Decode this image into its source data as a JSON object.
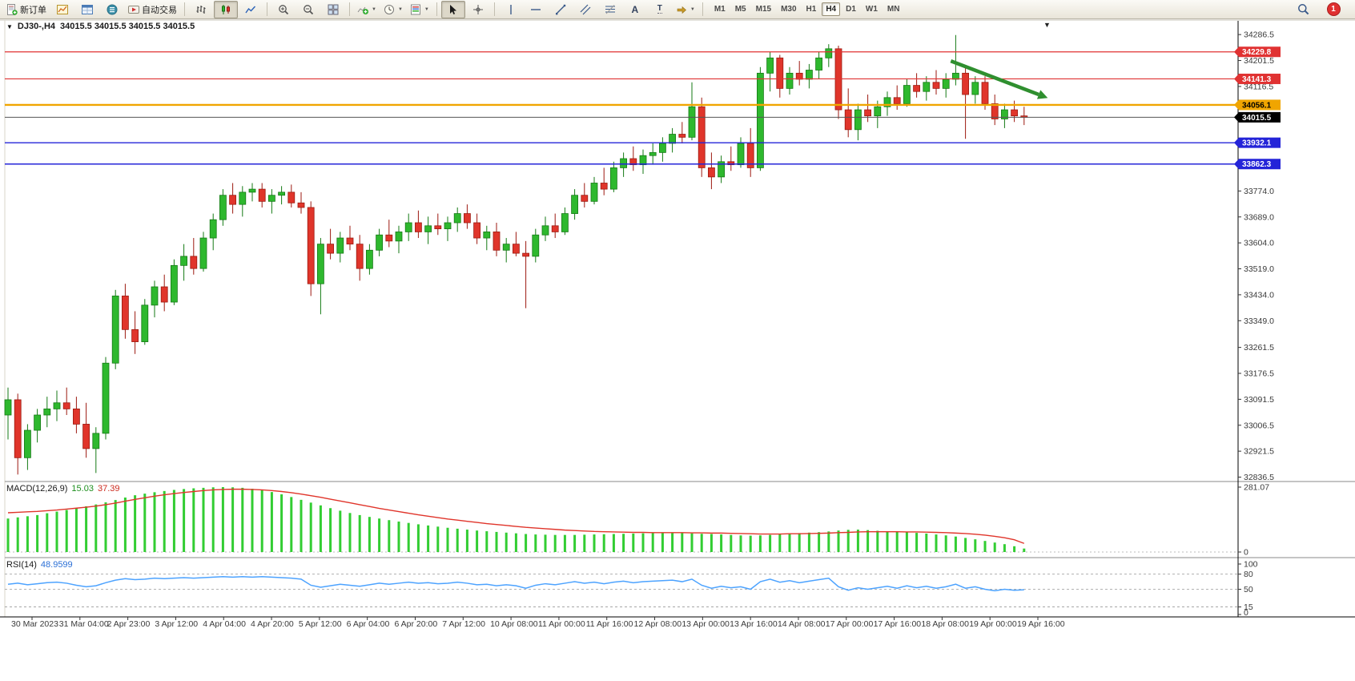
{
  "colors": {
    "bull": "#2eb82e",
    "bull_border": "#157a15",
    "bear": "#e0352b",
    "bear_border": "#9c1a10",
    "macd_histogram": "#32cd32",
    "macd_signal": "#e0352b",
    "rsi_line": "#4da3ff",
    "axis_text": "#3a3a3a",
    "accent_red_line": "#e03232",
    "accent_blue_line": "#2424d8",
    "accent_orange_line": "#f0a500",
    "current_price_line": "#555555",
    "arrow_green": "#2f8f2f"
  },
  "icons": {
    "dropdown_caret": "▼",
    "one_click_toggle": "▼",
    "chart_shift_marker": "▼",
    "text_tool": "A",
    "label_tool": "T"
  },
  "toolbar": {
    "new_order": "新订单",
    "auto_trading": "自动交易",
    "timeframes": [
      "M1",
      "M5",
      "M15",
      "M30",
      "H1",
      "H4",
      "D1",
      "W1",
      "MN"
    ],
    "active_timeframe": "H4",
    "notification_count": "1"
  },
  "chart": {
    "title_symbol": "DJ30-,H4",
    "title_ohlc": "34015.5 34015.5 34015.5 34015.5"
  },
  "panels": {
    "macd": {
      "name": "MACD(12,26,9)",
      "value_main": "15.03",
      "value_signal": "37.39",
      "axis_max": "281.07",
      "axis_min": "0"
    },
    "rsi": {
      "name": "RSI(14)",
      "value": "48.9599",
      "axis_labels": [
        "100",
        "80",
        "50",
        "15",
        "0"
      ],
      "level_lines": [
        80,
        50,
        15
      ]
    }
  },
  "price_axis": {
    "ticks": [
      "34286.5",
      "34201.5",
      "34116.5",
      "33774.0",
      "33689.0",
      "33604.0",
      "33519.0",
      "33434.0",
      "33349.0",
      "33261.5",
      "33176.5",
      "33091.5",
      "33006.5",
      "32921.5",
      "32836.5"
    ]
  },
  "hlines": [
    {
      "price": 34229.8,
      "label": "34229.8",
      "color": "#e03232",
      "width": 1.2,
      "badge_text_color": "#ffffff"
    },
    {
      "price": 34141.3,
      "label": "34141.3",
      "color": "#e03232",
      "width": 1.2,
      "badge_text_color": "#ffffff"
    },
    {
      "price": 34056.1,
      "label": "34056.1",
      "color": "#f0a500",
      "width": 2.4,
      "badge_text_color": "#000000"
    },
    {
      "price": 34015.5,
      "label": "34015.5",
      "color": "#555555",
      "width": 1.0,
      "badge_color": "#000000",
      "badge_text_color": "#ffffff"
    },
    {
      "price": 33932.1,
      "label": "33932.1",
      "color": "#2424d8",
      "width": 1.4,
      "badge_text_color": "#ffffff"
    },
    {
      "price": 33862.3,
      "label": "33862.3",
      "color": "#2424d8",
      "width": 1.4,
      "badge_text_color": "#ffffff"
    }
  ],
  "time_axis": {
    "labels": [
      "30 Mar 2023",
      "31 Mar 04:00",
      "2 Apr 23:00",
      "3 Apr 12:00",
      "4 Apr 04:00",
      "4 Apr 20:00",
      "5 Apr 12:00",
      "6 Apr 04:00",
      "6 Apr 20:00",
      "7 Apr 12:00",
      "10 Apr 08:00",
      "11 Apr 00:00",
      "11 Apr 16:00",
      "12 Apr 08:00",
      "13 Apr 00:00",
      "13 Apr 16:00",
      "14 Apr 08:00",
      "17 Apr 00:00",
      "17 Apr 16:00",
      "18 Apr 08:00",
      "19 Apr 00:00",
      "19 Apr 16:00"
    ]
  },
  "chart_data": {
    "type": "candlestick",
    "symbol": "DJ30-",
    "period": "H4",
    "ylim": [
      32830,
      34300
    ],
    "candles": [
      [
        33040,
        33130,
        32960,
        33090
      ],
      [
        33090,
        33110,
        32845,
        32900
      ],
      [
        32900,
        33010,
        32860,
        32990
      ],
      [
        32990,
        33060,
        32950,
        33040
      ],
      [
        33040,
        33100,
        33000,
        33060
      ],
      [
        33060,
        33120,
        33020,
        33080
      ],
      [
        33080,
        33130,
        33040,
        33060
      ],
      [
        33060,
        33100,
        32980,
        33010
      ],
      [
        33010,
        33080,
        32900,
        32930
      ],
      [
        32930,
        33000,
        32850,
        32980
      ],
      [
        32980,
        33230,
        32960,
        33210
      ],
      [
        33210,
        33450,
        33190,
        33430
      ],
      [
        33430,
        33470,
        33290,
        33320
      ],
      [
        33320,
        33380,
        33240,
        33280
      ],
      [
        33280,
        33420,
        33270,
        33400
      ],
      [
        33400,
        33480,
        33360,
        33460
      ],
      [
        33460,
        33500,
        33380,
        33410
      ],
      [
        33410,
        33550,
        33400,
        33530
      ],
      [
        33530,
        33600,
        33480,
        33560
      ],
      [
        33560,
        33620,
        33500,
        33520
      ],
      [
        33520,
        33640,
        33510,
        33620
      ],
      [
        33620,
        33700,
        33580,
        33680
      ],
      [
        33680,
        33780,
        33660,
        33760
      ],
      [
        33760,
        33800,
        33700,
        33730
      ],
      [
        33730,
        33790,
        33690,
        33770
      ],
      [
        33770,
        33800,
        33740,
        33780
      ],
      [
        33780,
        33800,
        33720,
        33740
      ],
      [
        33740,
        33780,
        33700,
        33760
      ],
      [
        33760,
        33790,
        33730,
        33770
      ],
      [
        33770,
        33795,
        33720,
        33735
      ],
      [
        33735,
        33770,
        33700,
        33720
      ],
      [
        33720,
        33740,
        33430,
        33470
      ],
      [
        33470,
        33620,
        33370,
        33600
      ],
      [
        33600,
        33650,
        33550,
        33570
      ],
      [
        33570,
        33640,
        33540,
        33620
      ],
      [
        33620,
        33660,
        33580,
        33600
      ],
      [
        33600,
        33630,
        33480,
        33520
      ],
      [
        33520,
        33600,
        33500,
        33580
      ],
      [
        33580,
        33650,
        33560,
        33630
      ],
      [
        33630,
        33680,
        33590,
        33610
      ],
      [
        33610,
        33660,
        33570,
        33640
      ],
      [
        33640,
        33700,
        33610,
        33670
      ],
      [
        33670,
        33710,
        33620,
        33640
      ],
      [
        33640,
        33690,
        33600,
        33660
      ],
      [
        33660,
        33700,
        33630,
        33650
      ],
      [
        33650,
        33690,
        33610,
        33670
      ],
      [
        33670,
        33720,
        33640,
        33700
      ],
      [
        33700,
        33730,
        33650,
        33670
      ],
      [
        33670,
        33700,
        33600,
        33620
      ],
      [
        33620,
        33660,
        33580,
        33640
      ],
      [
        33640,
        33670,
        33560,
        33580
      ],
      [
        33580,
        33620,
        33540,
        33600
      ],
      [
        33600,
        33640,
        33560,
        33570
      ],
      [
        33570,
        33610,
        33390,
        33560
      ],
      [
        33560,
        33650,
        33540,
        33630
      ],
      [
        33630,
        33690,
        33610,
        33660
      ],
      [
        33660,
        33700,
        33620,
        33640
      ],
      [
        33640,
        33720,
        33630,
        33700
      ],
      [
        33700,
        33780,
        33680,
        33760
      ],
      [
        33760,
        33800,
        33720,
        33740
      ],
      [
        33740,
        33820,
        33730,
        33800
      ],
      [
        33800,
        33850,
        33760,
        33780
      ],
      [
        33780,
        33870,
        33770,
        33850
      ],
      [
        33850,
        33900,
        33820,
        33880
      ],
      [
        33880,
        33920,
        33840,
        33860
      ],
      [
        33860,
        33910,
        33830,
        33890
      ],
      [
        33890,
        33930,
        33860,
        33900
      ],
      [
        33900,
        33950,
        33870,
        33930
      ],
      [
        33930,
        33980,
        33900,
        33960
      ],
      [
        33960,
        34000,
        33930,
        33950
      ],
      [
        33950,
        34130,
        33940,
        34050
      ],
      [
        34050,
        34080,
        33820,
        33850
      ],
      [
        33850,
        33900,
        33780,
        33820
      ],
      [
        33820,
        33890,
        33800,
        33870
      ],
      [
        33870,
        33920,
        33840,
        33860
      ],
      [
        33860,
        33950,
        33850,
        33930
      ],
      [
        33930,
        33980,
        33820,
        33850
      ],
      [
        33850,
        34180,
        33840,
        34160
      ],
      [
        34160,
        34230,
        34100,
        34210
      ],
      [
        34210,
        34220,
        34080,
        34110
      ],
      [
        34110,
        34180,
        34090,
        34160
      ],
      [
        34160,
        34200,
        34120,
        34140
      ],
      [
        34140,
        34190,
        34110,
        34170
      ],
      [
        34170,
        34230,
        34140,
        34210
      ],
      [
        34210,
        34255,
        34180,
        34240
      ],
      [
        34240,
        34250,
        34010,
        34040
      ],
      [
        34040,
        34110,
        33950,
        33975
      ],
      [
        33975,
        34060,
        33940,
        34040
      ],
      [
        34040,
        34090,
        34000,
        34020
      ],
      [
        34020,
        34070,
        33980,
        34050
      ],
      [
        34050,
        34100,
        34020,
        34080
      ],
      [
        34080,
        34120,
        34040,
        34060
      ],
      [
        34060,
        34140,
        34050,
        34120
      ],
      [
        34120,
        34160,
        34080,
        34100
      ],
      [
        34100,
        34150,
        34070,
        34130
      ],
      [
        34130,
        34170,
        34090,
        34110
      ],
      [
        34110,
        34160,
        34080,
        34140
      ],
      [
        34140,
        34285,
        34120,
        34160
      ],
      [
        34160,
        34180,
        33945,
        34090
      ],
      [
        34090,
        34150,
        34060,
        34130
      ],
      [
        34130,
        34150,
        34040,
        34060
      ],
      [
        34060,
        34090,
        33990,
        34010
      ],
      [
        34010,
        34060,
        33980,
        34040
      ],
      [
        34040,
        34070,
        34000,
        34020
      ],
      [
        34020,
        34050,
        33990,
        34015.5
      ]
    ],
    "macd": {
      "histogram": [
        145,
        150,
        155,
        160,
        168,
        175,
        182,
        190,
        198,
        206,
        215,
        225,
        236,
        246,
        253,
        259,
        264,
        269,
        273,
        276,
        278,
        280,
        281,
        280,
        278,
        274,
        268,
        260,
        250,
        238,
        226,
        214,
        202,
        190,
        179,
        169,
        160,
        152,
        145,
        138,
        132,
        126,
        120,
        115,
        110,
        105,
        101,
        97,
        93,
        90,
        87,
        84,
        81,
        78,
        76,
        75,
        74,
        74,
        74,
        75,
        76,
        77,
        78,
        79,
        80,
        81,
        82,
        83,
        83,
        82,
        81,
        79,
        78,
        76,
        74,
        72,
        71,
        72,
        74,
        77,
        80,
        82,
        84,
        86,
        89,
        93,
        96,
        97,
        95,
        92,
        89,
        87,
        85,
        83,
        80,
        76,
        72,
        67,
        61,
        55,
        48,
        41,
        34,
        25,
        15.03
      ],
      "signal": [
        170,
        172,
        174,
        176,
        179,
        182,
        186,
        190,
        194,
        199,
        205,
        212,
        220,
        228,
        235,
        242,
        248,
        253,
        258,
        262,
        266,
        269,
        271,
        272,
        272,
        271,
        269,
        266,
        262,
        257,
        251,
        244,
        237,
        229,
        221,
        213,
        205,
        197,
        189,
        182,
        175,
        168,
        161,
        155,
        149,
        143,
        138,
        133,
        128,
        123,
        119,
        115,
        111,
        107,
        104,
        101,
        98,
        95,
        93,
        91,
        89,
        88,
        87,
        86,
        85,
        85,
        84,
        84,
        84,
        84,
        83,
        83,
        82,
        82,
        81,
        80,
        79,
        78,
        78,
        78,
        79,
        79,
        80,
        81,
        82,
        84,
        85,
        87,
        88,
        88,
        88,
        88,
        87,
        87,
        86,
        85,
        84,
        82,
        80,
        77,
        73,
        68,
        62,
        53,
        37.39
      ]
    },
    "rsi": [
      60,
      62,
      59,
      61,
      63,
      64,
      62,
      58,
      55,
      57,
      63,
      68,
      71,
      69,
      70,
      72,
      71,
      72,
      73,
      72,
      73,
      74,
      75,
      74,
      75,
      74,
      75,
      74,
      73,
      72,
      70,
      58,
      54,
      57,
      60,
      58,
      56,
      59,
      62,
      60,
      62,
      64,
      62,
      63,
      61,
      62,
      64,
      62,
      59,
      60,
      57,
      59,
      57,
      52,
      58,
      61,
      59,
      62,
      65,
      62,
      64,
      61,
      64,
      66,
      63,
      65,
      66,
      67,
      68,
      65,
      70,
      58,
      52,
      56,
      53,
      55,
      50,
      65,
      70,
      64,
      67,
      63,
      66,
      69,
      72,
      55,
      48,
      53,
      50,
      53,
      56,
      52,
      57,
      53,
      56,
      52,
      55,
      60,
      52,
      55,
      50,
      47,
      50,
      48,
      48.96
    ],
    "annotations": [
      {
        "type": "arrow",
        "x1_index": 96.5,
        "y1_price": 34200,
        "x2_index": 105.5,
        "y2_price": 34090,
        "color": "#2f8f2f",
        "width": 4.5
      }
    ]
  }
}
